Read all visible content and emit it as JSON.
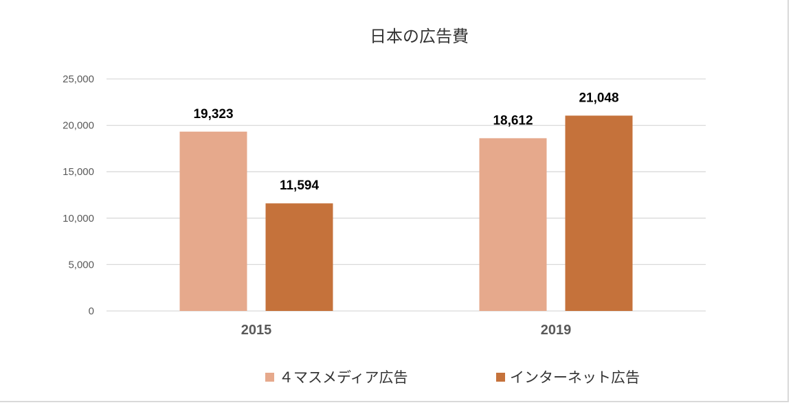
{
  "chart_data": {
    "type": "bar",
    "title": "日本の広告費",
    "categories": [
      "2015",
      "2019"
    ],
    "series": [
      {
        "name": "４マスメディア広告",
        "values": [
          19323,
          18612
        ],
        "labels": [
          "19,323",
          "18,612"
        ],
        "color": "#e6a98c"
      },
      {
        "name": "インターネット広告",
        "values": [
          11594,
          21048
        ],
        "labels": [
          "11,594",
          "21,048"
        ],
        "color": "#c5723b"
      }
    ],
    "y_ticks": [
      "0",
      "5,000",
      "10,000",
      "15,000",
      "20,000",
      "25,000"
    ],
    "ylim": [
      0,
      25000
    ],
    "grid": true,
    "legend_position": "bottom",
    "gridline_color": "#d9d9d9"
  }
}
